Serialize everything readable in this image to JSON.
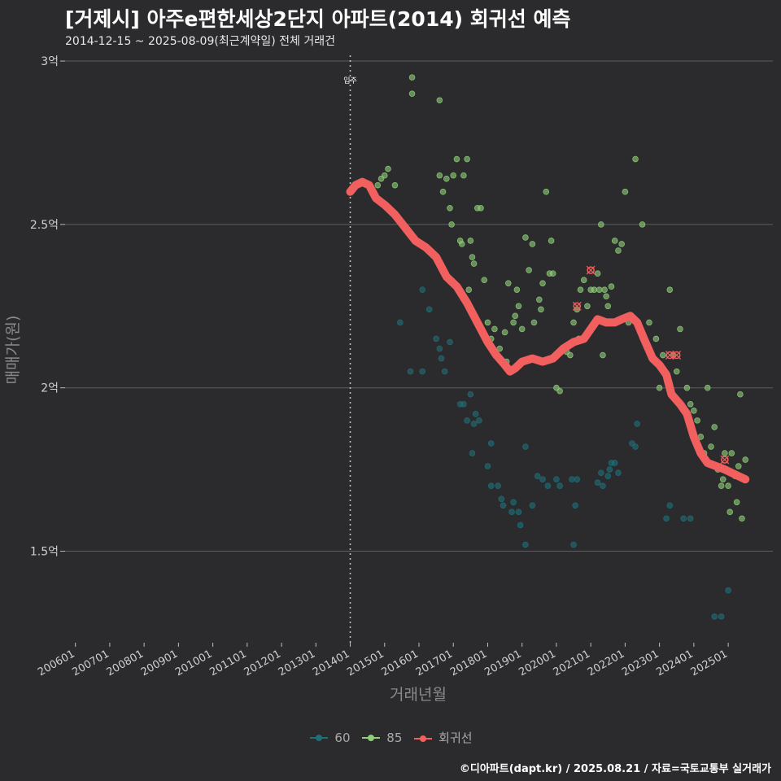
{
  "header": {
    "title": "[거제시] 아주e편한세상2단지 아파트(2014) 회귀선 예측",
    "subtitle": "2014-12-15 ~ 2025-08-09(최근계약일) 전체 거래건"
  },
  "caption": "©디아파트(dapt.kr) / 2025.08.21 / 자료=국토교통부 실거래가",
  "colors": {
    "bg": "#2b2b2d",
    "s60": "#1f6e78",
    "s85": "#8fce78",
    "reg": "#f25f5f",
    "grid": "#5e5e60",
    "text": "#cfcfcf"
  },
  "chart_data": {
    "type": "scatter",
    "xlabel": "거래년월",
    "ylabel": "매매가(원)",
    "xlim": [
      2005.7,
      2026.3
    ],
    "ylim": [
      1.22,
      3.03
    ],
    "y_ticks": [
      {
        "v": 1.5,
        "label": "1.5억"
      },
      {
        "v": 2.0,
        "label": "2억"
      },
      {
        "v": 2.5,
        "label": "2.5억"
      },
      {
        "v": 3.0,
        "label": "3억"
      }
    ],
    "x_ticks": [
      {
        "v": 2006,
        "label": "200601"
      },
      {
        "v": 2007,
        "label": "200701"
      },
      {
        "v": 2008,
        "label": "200801"
      },
      {
        "v": 2009,
        "label": "200901"
      },
      {
        "v": 2010,
        "label": "201001"
      },
      {
        "v": 2011,
        "label": "201101"
      },
      {
        "v": 2012,
        "label": "201201"
      },
      {
        "v": 2013,
        "label": "201301"
      },
      {
        "v": 2014,
        "label": "201401"
      },
      {
        "v": 2015,
        "label": "201501"
      },
      {
        "v": 2016,
        "label": "201601"
      },
      {
        "v": 2017,
        "label": "201701"
      },
      {
        "v": 2018,
        "label": "201801"
      },
      {
        "v": 2019,
        "label": "201901"
      },
      {
        "v": 2020,
        "label": "202001"
      },
      {
        "v": 2021,
        "label": "202101"
      },
      {
        "v": 2022,
        "label": "202201"
      },
      {
        "v": 2023,
        "label": "202301"
      },
      {
        "v": 2024,
        "label": "202401"
      },
      {
        "v": 2025,
        "label": "202501"
      }
    ],
    "vline": {
      "x": 2014.0,
      "label": "입주"
    },
    "legend": [
      {
        "name": "60",
        "key": "s60"
      },
      {
        "name": "85",
        "key": "s85"
      },
      {
        "name": "회귀선",
        "key": "reg"
      }
    ],
    "series": [
      {
        "name": "60",
        "points": [
          [
            2015.45,
            2.2
          ],
          [
            2015.75,
            2.05
          ],
          [
            2016.1,
            2.3
          ],
          [
            2016.1,
            2.05
          ],
          [
            2016.3,
            2.24
          ],
          [
            2016.5,
            2.15
          ],
          [
            2016.6,
            2.12
          ],
          [
            2016.65,
            2.09
          ],
          [
            2016.75,
            2.05
          ],
          [
            2016.9,
            2.14
          ],
          [
            2017.2,
            1.95
          ],
          [
            2017.3,
            1.95
          ],
          [
            2017.4,
            1.9
          ],
          [
            2017.5,
            1.98
          ],
          [
            2017.55,
            1.8
          ],
          [
            2017.6,
            1.89
          ],
          [
            2017.65,
            1.92
          ],
          [
            2017.75,
            1.9
          ],
          [
            2018.0,
            1.76
          ],
          [
            2018.1,
            1.83
          ],
          [
            2018.1,
            1.7
          ],
          [
            2018.3,
            1.7
          ],
          [
            2018.4,
            1.66
          ],
          [
            2018.45,
            1.64
          ],
          [
            2018.7,
            1.62
          ],
          [
            2018.75,
            1.65
          ],
          [
            2018.9,
            1.62
          ],
          [
            2018.95,
            1.58
          ],
          [
            2019.1,
            1.52
          ],
          [
            2019.1,
            1.82
          ],
          [
            2019.3,
            1.64
          ],
          [
            2019.45,
            1.73
          ],
          [
            2019.6,
            1.72
          ],
          [
            2019.75,
            1.7
          ],
          [
            2020.0,
            1.72
          ],
          [
            2020.1,
            1.7
          ],
          [
            2020.45,
            1.72
          ],
          [
            2020.5,
            1.52
          ],
          [
            2020.55,
            1.64
          ],
          [
            2020.6,
            1.72
          ],
          [
            2021.2,
            1.71
          ],
          [
            2021.3,
            1.74
          ],
          [
            2021.35,
            1.7
          ],
          [
            2021.5,
            1.73
          ],
          [
            2021.55,
            1.75
          ],
          [
            2021.6,
            1.77
          ],
          [
            2021.7,
            1.77
          ],
          [
            2021.8,
            1.74
          ],
          [
            2022.2,
            1.83
          ],
          [
            2022.3,
            1.82
          ],
          [
            2022.35,
            1.89
          ],
          [
            2023.2,
            1.6
          ],
          [
            2023.3,
            1.64
          ],
          [
            2023.7,
            1.6
          ],
          [
            2023.9,
            1.6
          ],
          [
            2024.6,
            1.3
          ],
          [
            2024.8,
            1.3
          ],
          [
            2025.0,
            1.38
          ]
        ]
      },
      {
        "name": "85",
        "points": [
          [
            2014.8,
            2.62
          ],
          [
            2014.9,
            2.64
          ],
          [
            2015.0,
            2.65
          ],
          [
            2015.1,
            2.67
          ],
          [
            2015.3,
            2.62
          ],
          [
            2015.8,
            2.95
          ],
          [
            2015.8,
            2.9
          ],
          [
            2016.6,
            2.88
          ],
          [
            2016.6,
            2.65
          ],
          [
            2016.7,
            2.6
          ],
          [
            2016.8,
            2.64
          ],
          [
            2016.9,
            2.55
          ],
          [
            2016.95,
            2.5
          ],
          [
            2017.0,
            2.65
          ],
          [
            2017.1,
            2.7
          ],
          [
            2017.2,
            2.45
          ],
          [
            2017.25,
            2.44
          ],
          [
            2017.3,
            2.65
          ],
          [
            2017.4,
            2.7
          ],
          [
            2017.45,
            2.3
          ],
          [
            2017.5,
            2.45
          ],
          [
            2017.55,
            2.4
          ],
          [
            2017.6,
            2.38
          ],
          [
            2017.7,
            2.55
          ],
          [
            2017.8,
            2.55
          ],
          [
            2017.9,
            2.33
          ],
          [
            2018.0,
            2.2
          ],
          [
            2018.1,
            2.15
          ],
          [
            2018.2,
            2.18
          ],
          [
            2018.35,
            2.12
          ],
          [
            2018.5,
            2.17
          ],
          [
            2018.55,
            2.08
          ],
          [
            2018.6,
            2.32
          ],
          [
            2018.7,
            2.05
          ],
          [
            2018.75,
            2.2
          ],
          [
            2018.8,
            2.22
          ],
          [
            2018.85,
            2.3
          ],
          [
            2018.9,
            2.25
          ],
          [
            2019.0,
            2.18
          ],
          [
            2019.1,
            2.46
          ],
          [
            2019.2,
            2.36
          ],
          [
            2019.3,
            2.44
          ],
          [
            2019.35,
            2.2
          ],
          [
            2019.5,
            2.27
          ],
          [
            2019.55,
            2.24
          ],
          [
            2019.6,
            2.32
          ],
          [
            2019.7,
            2.6
          ],
          [
            2019.8,
            2.35
          ],
          [
            2019.85,
            2.45
          ],
          [
            2019.9,
            2.35
          ],
          [
            2020.0,
            2.0
          ],
          [
            2020.1,
            1.99
          ],
          [
            2020.2,
            2.12
          ],
          [
            2020.3,
            2.11
          ],
          [
            2020.4,
            2.1
          ],
          [
            2020.5,
            2.2
          ],
          [
            2020.6,
            2.24
          ],
          [
            2020.65,
            2.15
          ],
          [
            2020.7,
            2.3
          ],
          [
            2020.8,
            2.33
          ],
          [
            2020.9,
            2.25
          ],
          [
            2021.0,
            2.3
          ],
          [
            2021.1,
            2.3
          ],
          [
            2021.2,
            2.35
          ],
          [
            2021.25,
            2.3
          ],
          [
            2021.3,
            2.5
          ],
          [
            2021.35,
            2.1
          ],
          [
            2021.4,
            2.3
          ],
          [
            2021.45,
            2.28
          ],
          [
            2021.5,
            2.25
          ],
          [
            2021.6,
            2.31
          ],
          [
            2021.7,
            2.45
          ],
          [
            2021.8,
            2.42
          ],
          [
            2021.9,
            2.44
          ],
          [
            2022.0,
            2.6
          ],
          [
            2022.1,
            2.2
          ],
          [
            2022.3,
            2.7
          ],
          [
            2022.5,
            2.5
          ],
          [
            2022.7,
            2.2
          ],
          [
            2022.9,
            2.15
          ],
          [
            2023.0,
            2.0
          ],
          [
            2023.1,
            2.1
          ],
          [
            2023.3,
            2.3
          ],
          [
            2023.4,
            2.1
          ],
          [
            2023.5,
            2.05
          ],
          [
            2023.6,
            2.18
          ],
          [
            2023.8,
            2.0
          ],
          [
            2023.9,
            1.95
          ],
          [
            2024.0,
            1.93
          ],
          [
            2024.1,
            1.9
          ],
          [
            2024.2,
            1.85
          ],
          [
            2024.3,
            1.8
          ],
          [
            2024.4,
            2.0
          ],
          [
            2024.5,
            1.82
          ],
          [
            2024.6,
            1.88
          ],
          [
            2024.7,
            1.75
          ],
          [
            2024.8,
            1.7
          ],
          [
            2024.85,
            1.72
          ],
          [
            2024.9,
            1.8
          ],
          [
            2025.0,
            1.7
          ],
          [
            2025.05,
            1.62
          ],
          [
            2025.1,
            1.8
          ],
          [
            2025.2,
            1.73
          ],
          [
            2025.25,
            1.65
          ],
          [
            2025.3,
            1.76
          ],
          [
            2025.35,
            1.98
          ],
          [
            2025.4,
            1.6
          ],
          [
            2025.5,
            1.78
          ]
        ]
      }
    ],
    "regression": [
      [
        2014.0,
        2.6
      ],
      [
        2014.15,
        2.62
      ],
      [
        2014.35,
        2.63
      ],
      [
        2014.55,
        2.62
      ],
      [
        2014.75,
        2.58
      ],
      [
        2015.0,
        2.56
      ],
      [
        2015.3,
        2.53
      ],
      [
        2015.6,
        2.49
      ],
      [
        2015.9,
        2.45
      ],
      [
        2016.2,
        2.43
      ],
      [
        2016.5,
        2.4
      ],
      [
        2016.8,
        2.34
      ],
      [
        2017.1,
        2.31
      ],
      [
        2017.4,
        2.26
      ],
      [
        2017.7,
        2.2
      ],
      [
        2018.0,
        2.14
      ],
      [
        2018.25,
        2.1
      ],
      [
        2018.5,
        2.07
      ],
      [
        2018.65,
        2.05
      ],
      [
        2018.8,
        2.06
      ],
      [
        2019.0,
        2.08
      ],
      [
        2019.3,
        2.09
      ],
      [
        2019.6,
        2.08
      ],
      [
        2019.9,
        2.09
      ],
      [
        2020.2,
        2.12
      ],
      [
        2020.5,
        2.14
      ],
      [
        2020.8,
        2.15
      ],
      [
        2021.0,
        2.18
      ],
      [
        2021.2,
        2.21
      ],
      [
        2021.45,
        2.2
      ],
      [
        2021.7,
        2.2
      ],
      [
        2021.9,
        2.21
      ],
      [
        2022.15,
        2.22
      ],
      [
        2022.35,
        2.2
      ],
      [
        2022.55,
        2.15
      ],
      [
        2022.8,
        2.09
      ],
      [
        2023.0,
        2.07
      ],
      [
        2023.2,
        2.04
      ],
      [
        2023.35,
        1.98
      ],
      [
        2023.6,
        1.95
      ],
      [
        2023.8,
        1.92
      ],
      [
        2024.0,
        1.85
      ],
      [
        2024.2,
        1.8
      ],
      [
        2024.4,
        1.77
      ],
      [
        2024.65,
        1.76
      ],
      [
        2024.9,
        1.75
      ],
      [
        2025.1,
        1.74
      ],
      [
        2025.3,
        1.73
      ],
      [
        2025.5,
        1.72
      ]
    ],
    "markers": [
      [
        2020.6,
        2.25
      ],
      [
        2021.0,
        2.36
      ],
      [
        2023.3,
        2.1
      ],
      [
        2023.5,
        2.1
      ],
      [
        2024.9,
        1.78
      ]
    ]
  }
}
